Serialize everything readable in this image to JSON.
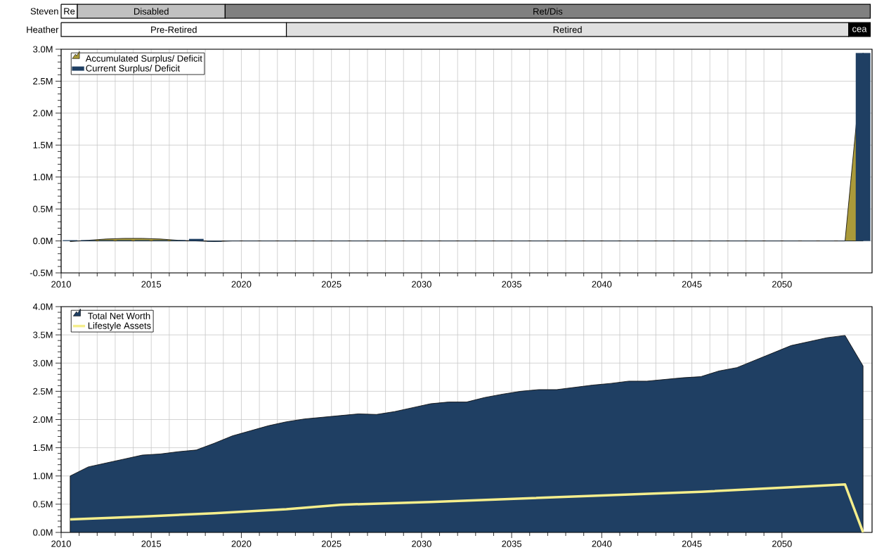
{
  "chart_data": [
    {
      "type": "bar",
      "orientation": "horizontal",
      "categories": [
        "Steven",
        "Heather"
      ],
      "xlim": [
        2010,
        2055
      ],
      "tick_labels": "y",
      "series": [
        {
          "values": [
            0.9,
            12.5
          ],
          "base": [
            2010,
            2010
          ],
          "colors": [
            "#ffffff",
            "#ffffff"
          ]
        },
        {
          "values": [
            8.2,
            31.2
          ],
          "base": [
            2010.9,
            2022.5
          ],
          "colors": [
            "#c0c0c0",
            "#e0e0e0"
          ]
        },
        {
          "values": [
            35.8,
            1.2
          ],
          "base": [
            2019.1,
            2053.7
          ],
          "colors": [
            "#808080",
            "#000000"
          ]
        }
      ],
      "annotations": [
        {
          "text": "Re",
          "x": 2010.45,
          "y": "Steven"
        },
        {
          "text": "Disabled",
          "x": 2015.0,
          "y": "Steven"
        },
        {
          "text": "Ret/Dis",
          "x": 2037.0,
          "y": "Steven"
        },
        {
          "text": "Pre-Retired",
          "x": 2016.25,
          "y": "Heather"
        },
        {
          "text": "Retired",
          "x": 2038.1,
          "y": "Heather"
        },
        {
          "text": "cea",
          "x": 2054.3,
          "y": "Heather"
        }
      ]
    },
    {
      "type": "bar",
      "xlim": [
        2010,
        2055
      ],
      "ylim": [
        -0.5,
        3.0
      ],
      "xticks": [
        2010,
        2015,
        2020,
        2025,
        2030,
        2035,
        2040,
        2045,
        2050
      ],
      "yticks": [
        {
          "value": -0.5,
          "label": "-0.5M"
        },
        {
          "value": 0,
          "label": "0.0M"
        },
        {
          "value": 0.5,
          "label": "0.5M"
        },
        {
          "value": 1.0,
          "label": "1.0M"
        },
        {
          "value": 1.5,
          "label": "1.5M"
        },
        {
          "value": 2.0,
          "label": "2.0M"
        },
        {
          "value": 2.5,
          "label": "2.5M"
        },
        {
          "value": 3.0,
          "label": "3.0M"
        }
      ],
      "grid": true,
      "legend": "top left",
      "x": [
        2010.5,
        2011.5,
        2012.5,
        2013.5,
        2014.5,
        2015.5,
        2016.5,
        2017.5,
        2018.5,
        2019.5,
        2020.5,
        2021.5,
        2022.5,
        2023.5,
        2024.5,
        2025.5,
        2026.5,
        2027.5,
        2028.5,
        2029.5,
        2030.5,
        2031.5,
        2032.5,
        2033.5,
        2034.5,
        2035.5,
        2036.5,
        2037.5,
        2038.5,
        2039.5,
        2040.5,
        2041.5,
        2042.5,
        2043.5,
        2044.5,
        2045.5,
        2046.5,
        2047.5,
        2048.5,
        2049.5,
        2050.5,
        2051.5,
        2052.5,
        2053.5,
        2054.5
      ],
      "series": [
        {
          "name": "Accumulated Surplus/ Deficit",
          "type": "area",
          "color": "#aa9a3a",
          "values": [
            -0.01,
            0.01,
            0.03,
            0.04,
            0.04,
            0.03,
            0.01,
            0.0,
            -0.01,
            0,
            0,
            0,
            0,
            0,
            0,
            0,
            0,
            0,
            0,
            0,
            0,
            0,
            0,
            0,
            0,
            0,
            0,
            0,
            0,
            0,
            0,
            0,
            0,
            0,
            0,
            0,
            0,
            0,
            0,
            0,
            0,
            0,
            0,
            0,
            2.94
          ]
        },
        {
          "name": "Current Surplus/ Deficit",
          "type": "bar",
          "color": "#1f3f63",
          "values": [
            0.01,
            0.01,
            0.01,
            0.01,
            0.01,
            0.01,
            0.01,
            0.03,
            -0.01,
            0,
            0,
            0,
            0,
            0,
            0,
            0,
            0,
            0,
            0,
            0,
            0,
            0,
            0,
            0,
            0,
            0,
            0,
            0,
            0,
            0,
            0,
            0,
            0,
            0,
            0,
            0,
            0,
            0,
            0,
            0,
            0,
            0,
            0,
            0,
            2.94
          ]
        }
      ]
    },
    {
      "type": "area",
      "xlim": [
        2010,
        2055
      ],
      "ylim": [
        0,
        4.0
      ],
      "xticks": [
        2010,
        2015,
        2020,
        2025,
        2030,
        2035,
        2040,
        2045,
        2050
      ],
      "yticks": [
        {
          "value": 0,
          "label": "0.0M"
        },
        {
          "value": 0.5,
          "label": "0.5M"
        },
        {
          "value": 1.0,
          "label": "1.0M"
        },
        {
          "value": 1.5,
          "label": "1.5M"
        },
        {
          "value": 2.0,
          "label": "2.0M"
        },
        {
          "value": 2.5,
          "label": "2.5M"
        },
        {
          "value": 3.0,
          "label": "3.0M"
        },
        {
          "value": 3.5,
          "label": "3.5M"
        },
        {
          "value": 4.0,
          "label": "4.0M"
        }
      ],
      "grid": true,
      "legend": "top left",
      "x": [
        2010.5,
        2011.5,
        2012.5,
        2013.5,
        2014.5,
        2015.5,
        2016.5,
        2017.5,
        2018.5,
        2019.5,
        2020.5,
        2021.5,
        2022.5,
        2023.5,
        2024.5,
        2025.5,
        2026.5,
        2027.5,
        2028.5,
        2029.5,
        2030.5,
        2031.5,
        2032.5,
        2033.5,
        2034.5,
        2035.5,
        2036.5,
        2037.5,
        2038.5,
        2039.5,
        2040.5,
        2041.5,
        2042.5,
        2043.5,
        2044.5,
        2045.5,
        2046.5,
        2047.5,
        2048.5,
        2049.5,
        2050.5,
        2051.5,
        2052.5,
        2053.5,
        2054.5
      ],
      "series": [
        {
          "name": "Total Net Worth",
          "type": "area",
          "color": "#1f3f63",
          "values": [
            1.0,
            1.16,
            1.23,
            1.3,
            1.37,
            1.39,
            1.43,
            1.46,
            1.58,
            1.71,
            1.8,
            1.89,
            1.96,
            2.01,
            2.04,
            2.07,
            2.1,
            2.09,
            2.14,
            2.21,
            2.28,
            2.31,
            2.31,
            2.39,
            2.45,
            2.5,
            2.53,
            2.53,
            2.57,
            2.61,
            2.64,
            2.68,
            2.68,
            2.71,
            2.74,
            2.76,
            2.86,
            2.92,
            3.05,
            3.18,
            3.31,
            3.38,
            3.45,
            3.49,
            2.95
          ]
        },
        {
          "name": "Lifestyle Assets",
          "type": "line",
          "color": "#f5ee8c",
          "x": [
            2010.5,
            2014.5,
            2018.5,
            2022.5,
            2025.5,
            2030.5,
            2035.5,
            2040.5,
            2045.5,
            2050.5,
            2053.5,
            2054.5
          ],
          "values": [
            0.23,
            0.28,
            0.34,
            0.41,
            0.49,
            0.54,
            0.6,
            0.66,
            0.72,
            0.8,
            0.85,
            0.0
          ]
        }
      ]
    }
  ]
}
